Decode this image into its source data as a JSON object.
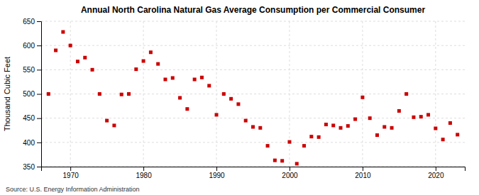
{
  "chart_data": {
    "type": "scatter",
    "title": "Annual North Carolina Natural Gas Average Consumption per Commercial Consumer",
    "ylabel": "Thousand Cubic Feet",
    "annotation": "Source: U.S. Energy Information Administration",
    "color": "#cc0000",
    "marker": "square",
    "grid": true,
    "xlim": [
      1966,
      2024
    ],
    "ylim": [
      350,
      650
    ],
    "xticks": [
      1970,
      1980,
      1990,
      2000,
      2010,
      2020
    ],
    "yticks": [
      350,
      400,
      450,
      500,
      550,
      600,
      650
    ],
    "x": [
      1967,
      1968,
      1969,
      1970,
      1971,
      1972,
      1973,
      1974,
      1975,
      1976,
      1977,
      1978,
      1979,
      1980,
      1981,
      1982,
      1983,
      1984,
      1985,
      1986,
      1987,
      1988,
      1989,
      1990,
      1991,
      1992,
      1993,
      1994,
      1995,
      1996,
      1997,
      1998,
      1999,
      2000,
      2001,
      2002,
      2003,
      2004,
      2005,
      2006,
      2007,
      2008,
      2009,
      2010,
      2011,
      2012,
      2013,
      2014,
      2015,
      2016,
      2017,
      2018,
      2019,
      2020,
      2021,
      2022,
      2023
    ],
    "values": [
      500,
      590,
      628,
      600,
      567,
      575,
      550,
      500,
      445,
      435,
      499,
      500,
      551,
      568,
      586,
      562,
      530,
      533,
      492,
      469,
      530,
      534,
      517,
      457,
      500,
      490,
      479,
      445,
      432,
      430,
      393,
      363,
      362,
      401,
      356,
      393,
      412,
      411,
      437,
      435,
      430,
      434,
      448,
      493,
      450,
      415,
      432,
      430,
      465,
      500,
      452,
      453,
      457,
      429,
      406,
      440,
      416
    ]
  }
}
